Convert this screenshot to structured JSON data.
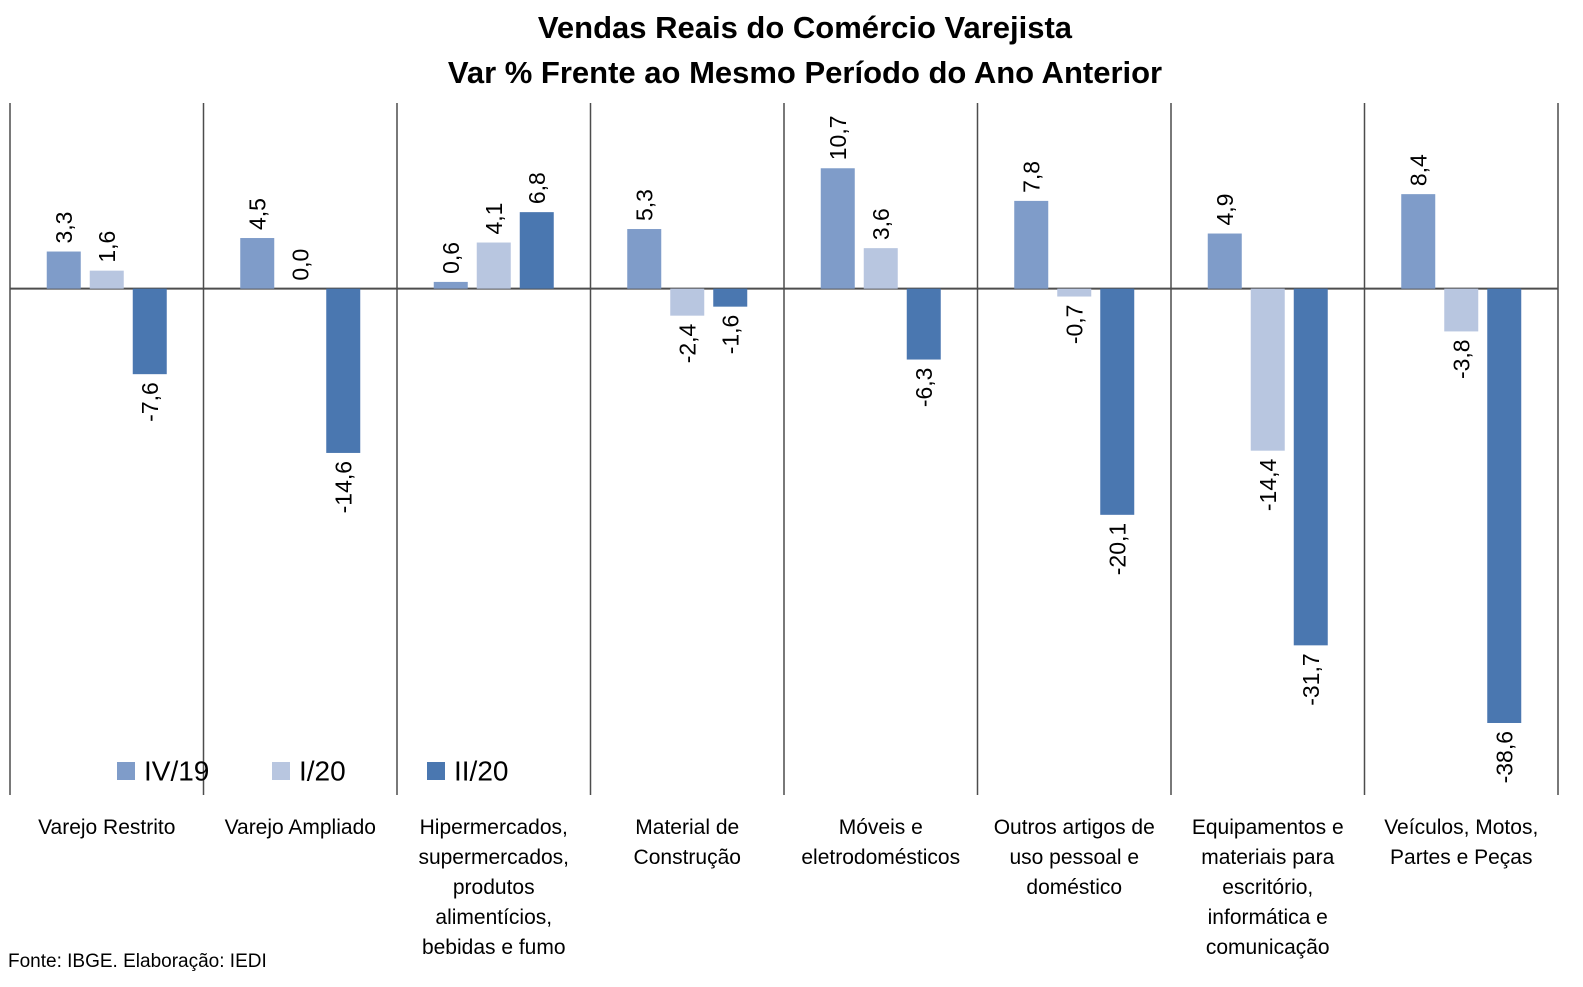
{
  "chart_data": {
    "type": "bar",
    "title": "Vendas Reais do Comércio Varejista",
    "subtitle": "Var % Frente ao Mesmo Período do Ano Anterior",
    "source": "Fonte: IBGE. Elaboração: IEDI",
    "categories": [
      "Varejo Restrito",
      "Varejo Ampliado",
      "Hipermercados, supermercados, produtos alimentícios, bebidas e fumo",
      "Material de Construção",
      "Móveis e eletrodomésticos",
      "Outros artigos de uso pessoal e doméstico",
      "Equipamentos e materiais para escritório, informática e comunicação",
      "Veículos, Motos, Partes e Peças"
    ],
    "category_lines": [
      [
        "Varejo Restrito"
      ],
      [
        "Varejo Ampliado"
      ],
      [
        "Hipermercados,",
        "supermercados,",
        "produtos",
        "alimentícios,",
        "bebidas e fumo"
      ],
      [
        "Material de",
        "Construção"
      ],
      [
        "Móveis e",
        "eletrodomésticos"
      ],
      [
        "Outros artigos de",
        "uso pessoal e",
        "doméstico"
      ],
      [
        "Equipamentos e",
        "materiais para",
        "escritório,",
        "informática e",
        "comunicação"
      ],
      [
        "Veículos, Motos,",
        "Partes e Peças"
      ]
    ],
    "series": [
      {
        "name": "IV/19",
        "color": "#7f9cc9",
        "values": [
          3.3,
          4.5,
          0.6,
          5.3,
          10.7,
          7.8,
          4.9,
          8.4
        ],
        "labels": [
          "3,3",
          "4,5",
          "0,6",
          "5,3",
          "10,7",
          "7,8",
          "4,9",
          "8,4"
        ]
      },
      {
        "name": "I/20",
        "color": "#b8c6e0",
        "values": [
          1.6,
          0.0,
          4.1,
          -2.4,
          3.6,
          -0.7,
          -14.4,
          -3.8
        ],
        "labels": [
          "1,6",
          "0,0",
          "4,1",
          "-2,4",
          "3,6",
          "-0,7",
          "-14,4",
          "-3,8"
        ]
      },
      {
        "name": "II/20",
        "color": "#4a77b0",
        "values": [
          -7.6,
          -14.6,
          6.8,
          -1.6,
          -6.3,
          -20.1,
          -31.7,
          -38.6
        ],
        "labels": [
          "-7,6",
          "-14,6",
          "6,8",
          "-1,6",
          "-6,3",
          "-20,1",
          "-31,7",
          "-38,6"
        ]
      }
    ],
    "ylim": [
      -45,
      16.5
    ],
    "grid": false,
    "legend_position": "bottom-left",
    "data_label_orientation": "vertical"
  }
}
